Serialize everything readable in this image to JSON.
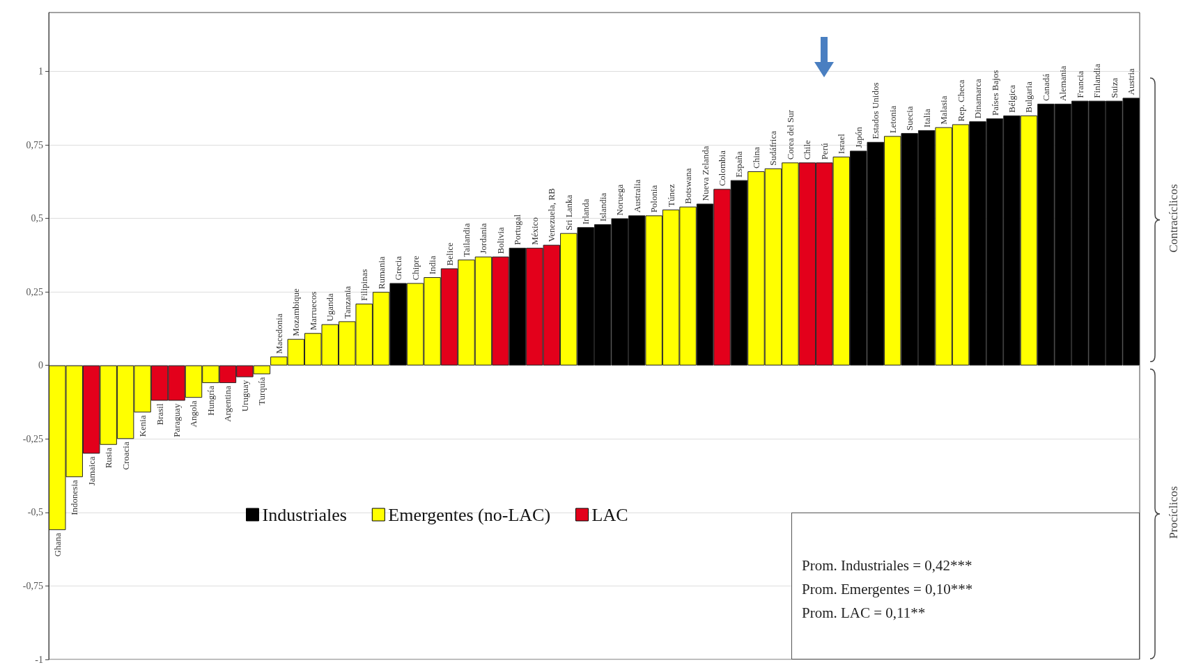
{
  "chart_data": {
    "type": "bar",
    "categories": [
      "Ghana",
      "Indonesia",
      "Jamaica",
      "Rusia",
      "Croacia",
      "Kenia",
      "Brasil",
      "Paraguay",
      "Angola",
      "Hungría",
      "Argentina",
      "Uruguay",
      "Turquía",
      "Macedonia",
      "Mozambique",
      "Marruecos",
      "Uganda",
      "Tanzania",
      "Filipinas",
      "Rumania",
      "Grecia",
      "Chipre",
      "India",
      "Belice",
      "Tailandia",
      "Jordania",
      "Bolivia",
      "Portugal",
      "México",
      "Venezuela, RB",
      "Sri Lanka",
      "Irlanda",
      "Islandia",
      "Noruega",
      "Australia",
      "Polonia",
      "Túnez",
      "Botswana",
      "Nueva Zelanda",
      "Colombia",
      "España",
      "China",
      "Sudáfrica",
      "Corea del Sur",
      "Chile",
      "Perú",
      "Israel",
      "Japón",
      "Estados Unidos",
      "Letonia",
      "Suecia",
      "Italia",
      "Malasia",
      "Rep. Checa",
      "Dinamarca",
      "Países Bajos",
      "Bélgica",
      "Bulgaria",
      "Canadá",
      "Alemania",
      "Francia",
      "Finlandia",
      "Suiza",
      "Austria"
    ],
    "series": [
      {
        "name": "Industriales",
        "color": "#000000",
        "values": [
          null,
          null,
          null,
          null,
          null,
          null,
          null,
          null,
          null,
          null,
          null,
          null,
          null,
          null,
          null,
          null,
          null,
          null,
          null,
          null,
          0.28,
          null,
          null,
          null,
          null,
          null,
          null,
          0.4,
          null,
          null,
          null,
          0.47,
          0.48,
          0.5,
          0.51,
          null,
          null,
          null,
          0.55,
          null,
          0.63,
          null,
          null,
          null,
          null,
          null,
          null,
          0.73,
          0.76,
          null,
          0.79,
          0.8,
          null,
          null,
          0.83,
          0.84,
          0.85,
          null,
          0.89,
          0.89,
          0.9,
          0.9,
          0.9,
          0.91
        ]
      },
      {
        "name": "Emergentes (no-LAC)",
        "color": "#ffff00",
        "values": [
          -0.56,
          -0.38,
          null,
          -0.27,
          -0.25,
          -0.16,
          null,
          null,
          -0.11,
          -0.06,
          null,
          null,
          -0.03,
          0.03,
          0.09,
          0.11,
          0.14,
          0.15,
          0.21,
          0.25,
          null,
          0.28,
          0.3,
          null,
          0.36,
          0.37,
          null,
          null,
          null,
          null,
          0.45,
          null,
          null,
          null,
          null,
          0.51,
          0.53,
          0.54,
          null,
          null,
          null,
          0.66,
          0.67,
          0.69,
          null,
          null,
          0.71,
          null,
          null,
          0.78,
          null,
          null,
          0.81,
          0.82,
          null,
          null,
          null,
          0.85,
          null,
          null,
          null,
          null,
          null,
          null
        ]
      },
      {
        "name": "LAC",
        "color": "#e3001b",
        "values": [
          null,
          null,
          -0.3,
          null,
          null,
          null,
          -0.12,
          -0.12,
          null,
          null,
          -0.06,
          -0.04,
          null,
          null,
          null,
          null,
          null,
          null,
          null,
          null,
          null,
          null,
          null,
          0.33,
          null,
          null,
          0.37,
          null,
          0.4,
          0.41,
          null,
          null,
          null,
          null,
          null,
          null,
          null,
          null,
          null,
          0.6,
          null,
          null,
          null,
          null,
          0.69,
          0.69,
          null,
          null,
          null,
          null,
          null,
          null,
          null,
          null,
          null,
          null,
          null,
          null,
          null,
          null,
          null,
          null,
          null,
          null
        ]
      }
    ],
    "stacked": true,
    "ylim": [
      -1,
      1.2
    ],
    "yticks": [
      {
        "value": -1,
        "label": "-1"
      },
      {
        "value": -0.75,
        "label": "-0,75"
      },
      {
        "value": -0.5,
        "label": "-0,5"
      },
      {
        "value": -0.25,
        "label": "-0,25"
      },
      0,
      {
        "value": 0.25,
        "label": "0,25"
      },
      {
        "value": 0.5,
        "label": "0,5"
      },
      {
        "value": 0.75,
        "label": "0,75"
      },
      1
    ],
    "grid": "y",
    "legend": "bottom",
    "annotations": [
      "Contracíclicos",
      "Procíclicos",
      "Prom. Industriales = 0,42***",
      "Prom. Emergentes = 0,10***",
      "Prom. LAC = 0,11**"
    ]
  }
}
